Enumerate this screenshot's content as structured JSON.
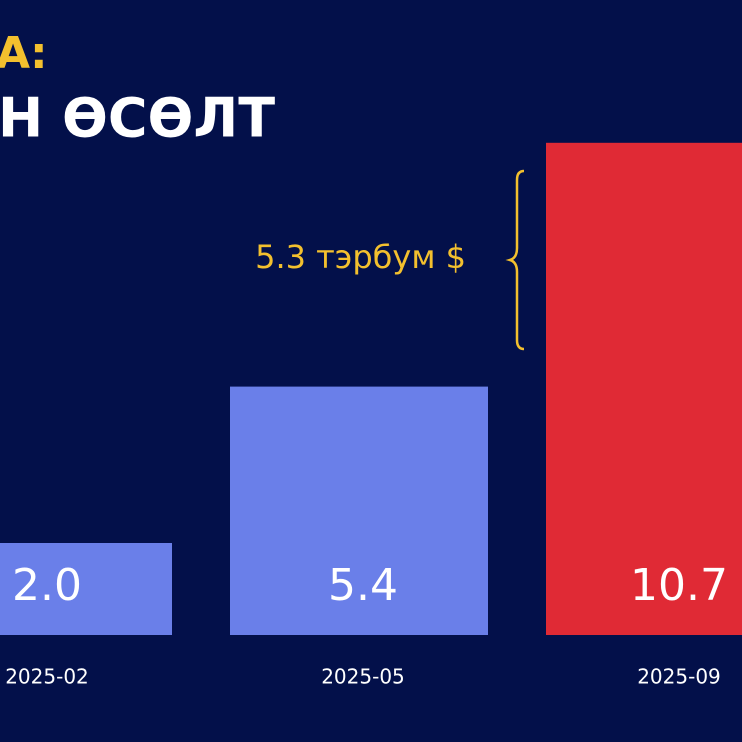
{
  "chart_data": {
    "type": "bar",
    "title": "А:",
    "subtitle": "Н ӨСӨЛТ",
    "categories": [
      "2025-02",
      "2025-05",
      "2025-09"
    ],
    "values": [
      2.0,
      5.4,
      10.7
    ],
    "value_labels": [
      "2.0",
      "5.4",
      "10.7"
    ],
    "colors": [
      "#6a7fe9",
      "#6a7fe9",
      "#e02a35"
    ],
    "ylim": [
      0,
      12
    ],
    "annotation": "5.3 тэрбум $"
  }
}
